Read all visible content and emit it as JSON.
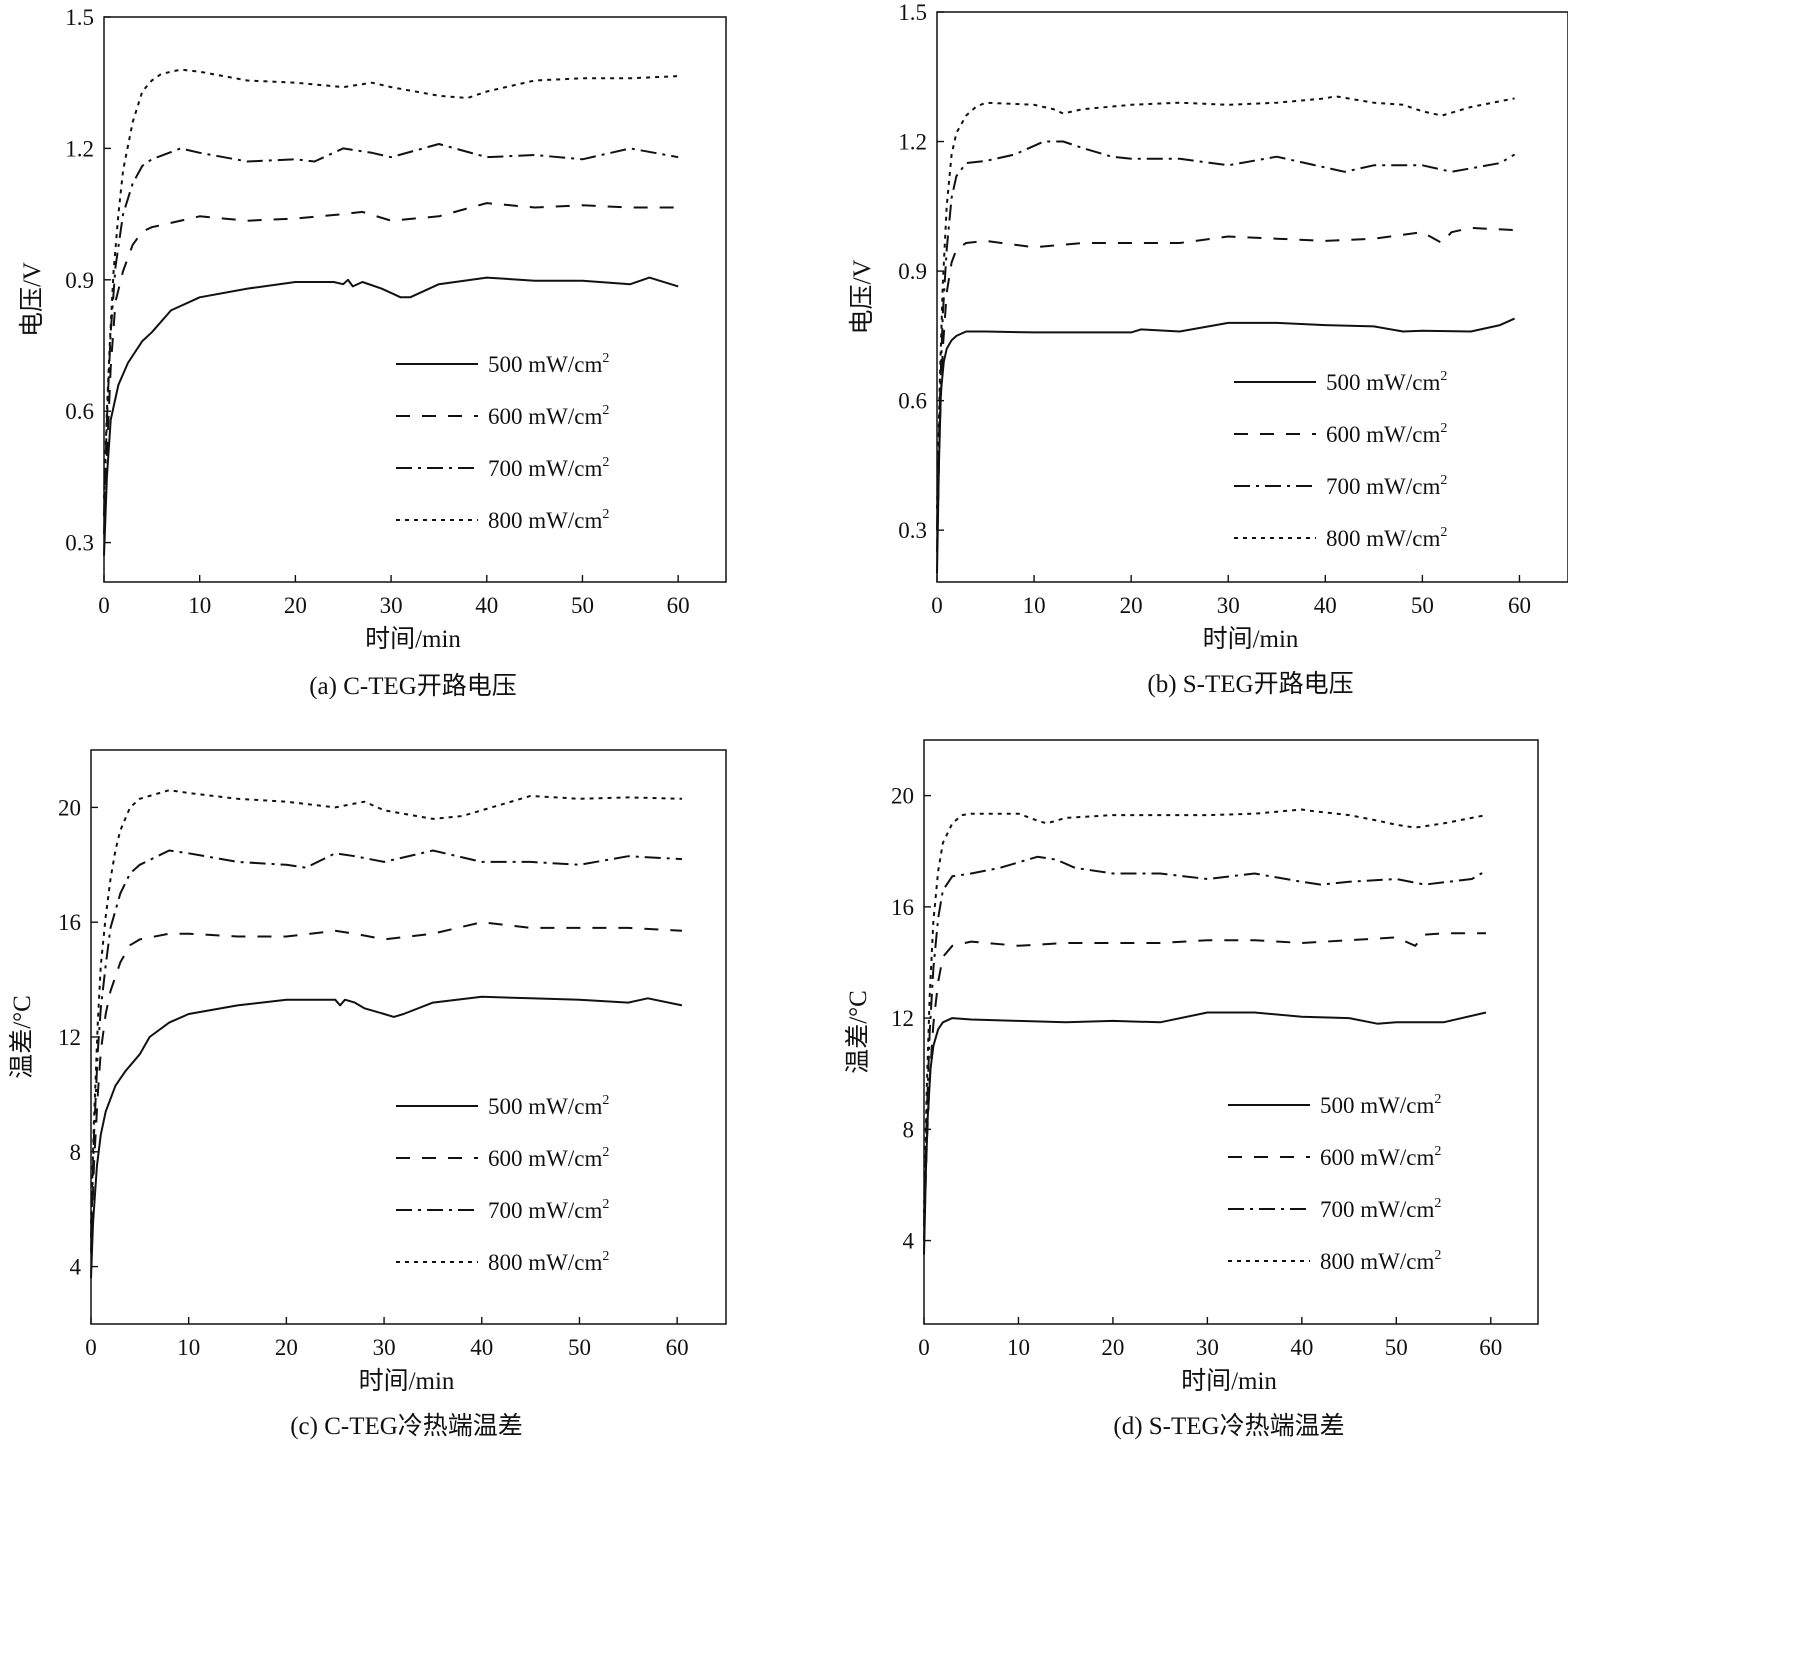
{
  "legend": [
    {
      "series_id": "s500",
      "value": "500 mW/cm",
      "sup": "2"
    },
    {
      "series_id": "s600",
      "value": "600 mW/cm",
      "sup": "2"
    },
    {
      "series_id": "s700",
      "value": "700 mW/cm",
      "sup": "2"
    },
    {
      "series_id": "s800",
      "value": "800 mW/cm",
      "sup": "2"
    }
  ],
  "chart_data": [
    {
      "id": "a",
      "type": "line",
      "caption": "(a) C-TEG开路电压",
      "xlabel": "时间/min",
      "ylabel": "电压/V",
      "xlim": [
        0,
        65
      ],
      "ylim": [
        0.21,
        1.5
      ],
      "xticks": [
        0,
        10,
        20,
        30,
        40,
        50,
        60
      ],
      "xtick_labels": [
        "0",
        "10",
        "20",
        "30",
        "40",
        "50",
        "60"
      ],
      "yticks": [
        0.3,
        0.6,
        0.9,
        1.2,
        1.5
      ],
      "ytick_labels": [
        "0.3",
        "0.6",
        "0.9",
        "1.2",
        "1.5"
      ],
      "grid": false,
      "legend_position": "lower-right",
      "series": [
        {
          "id": "s500",
          "name": "500 mW/cm2",
          "x": [
            0,
            0.3,
            0.7,
            1.5,
            2.5,
            4,
            5,
            7,
            10,
            15,
            20,
            24,
            25,
            25.5,
            26,
            27,
            29,
            30,
            31,
            32,
            35,
            40,
            45,
            50,
            55,
            57,
            60
          ],
          "y": [
            0.27,
            0.45,
            0.58,
            0.66,
            0.71,
            0.76,
            0.78,
            0.83,
            0.86,
            0.88,
            0.895,
            0.895,
            0.89,
            0.9,
            0.885,
            0.895,
            0.88,
            0.87,
            0.86,
            0.86,
            0.89,
            0.905,
            0.898,
            0.898,
            0.89,
            0.905,
            0.885
          ]
        },
        {
          "id": "s600",
          "name": "600 mW/cm2",
          "x": [
            0,
            0.3,
            0.7,
            1.2,
            2,
            3,
            4,
            5,
            7,
            10,
            15,
            20,
            25,
            27,
            30,
            35,
            40,
            45,
            50,
            55,
            60
          ],
          "y": [
            0.32,
            0.5,
            0.7,
            0.85,
            0.92,
            0.98,
            1.01,
            1.02,
            1.03,
            1.045,
            1.035,
            1.04,
            1.05,
            1.055,
            1.035,
            1.045,
            1.075,
            1.065,
            1.07,
            1.065,
            1.065
          ]
        },
        {
          "id": "s700",
          "name": "700 mW/cm2",
          "x": [
            0,
            0.3,
            0.7,
            1.2,
            2,
            3,
            4,
            5,
            8,
            10,
            15,
            20,
            22,
            25,
            28,
            30,
            35,
            40,
            45,
            50,
            55,
            60
          ],
          "y": [
            0.36,
            0.58,
            0.78,
            0.93,
            1.05,
            1.12,
            1.16,
            1.175,
            1.2,
            1.19,
            1.17,
            1.175,
            1.17,
            1.2,
            1.19,
            1.18,
            1.21,
            1.18,
            1.185,
            1.175,
            1.2,
            1.18
          ]
        },
        {
          "id": "s800",
          "name": "800 mW/cm2",
          "x": [
            0,
            0.3,
            0.6,
            1,
            1.5,
            2,
            3,
            4,
            5,
            6,
            8,
            10,
            15,
            20,
            25,
            28,
            30,
            35,
            38,
            40,
            45,
            50,
            55,
            60
          ],
          "y": [
            0.4,
            0.6,
            0.75,
            0.92,
            1.05,
            1.15,
            1.26,
            1.33,
            1.355,
            1.37,
            1.38,
            1.375,
            1.355,
            1.35,
            1.34,
            1.35,
            1.34,
            1.32,
            1.315,
            1.33,
            1.355,
            1.36,
            1.36,
            1.365
          ]
        }
      ]
    },
    {
      "id": "b",
      "type": "line",
      "caption": "(b) S-TEG开路电压",
      "xlabel": "时间/min",
      "ylabel": "电压/V",
      "xlim": [
        0,
        65
      ],
      "ylim": [
        0.18,
        1.5
      ],
      "xticks": [
        0,
        10,
        20,
        30,
        40,
        50,
        60
      ],
      "xtick_labels": [
        "0",
        "10",
        "20",
        "30",
        "40",
        "50",
        "60"
      ],
      "yticks": [
        0.3,
        0.6,
        0.9,
        1.2,
        1.5
      ],
      "ytick_labels": [
        "0.3",
        "0.6",
        "0.9",
        "1.2",
        "1.5"
      ],
      "grid": false,
      "legend_position": "lower-right",
      "series": [
        {
          "id": "s500",
          "name": "500 mW/cm2",
          "x": [
            0,
            0.2,
            0.4,
            0.7,
            1,
            1.5,
            2,
            3,
            5,
            10,
            15,
            20,
            21,
            25,
            30,
            35,
            40,
            45,
            48,
            50,
            55,
            58,
            59.5
          ],
          "y": [
            0.2,
            0.45,
            0.62,
            0.69,
            0.72,
            0.74,
            0.75,
            0.76,
            0.76,
            0.758,
            0.758,
            0.758,
            0.765,
            0.76,
            0.78,
            0.78,
            0.775,
            0.772,
            0.76,
            0.762,
            0.76,
            0.775,
            0.79
          ]
        },
        {
          "id": "s600",
          "name": "600 mW/cm2",
          "x": [
            0,
            0.3,
            0.6,
            1,
            1.5,
            2,
            3,
            5,
            10,
            15,
            20,
            25,
            30,
            35,
            40,
            45,
            50,
            52,
            53,
            55,
            59.5
          ],
          "y": [
            0.25,
            0.55,
            0.72,
            0.85,
            0.92,
            0.95,
            0.965,
            0.97,
            0.955,
            0.965,
            0.965,
            0.965,
            0.98,
            0.975,
            0.97,
            0.975,
            0.99,
            0.965,
            0.99,
            1.0,
            0.995
          ]
        },
        {
          "id": "s700",
          "name": "700 mW/cm2",
          "x": [
            0,
            0.3,
            0.6,
            1,
            1.5,
            2,
            3,
            5,
            8,
            11,
            13,
            15,
            18,
            20,
            25,
            30,
            35,
            40,
            42,
            45,
            50,
            53,
            58,
            59.5
          ],
          "y": [
            0.3,
            0.6,
            0.8,
            0.95,
            1.07,
            1.12,
            1.15,
            1.155,
            1.17,
            1.2,
            1.2,
            1.185,
            1.165,
            1.16,
            1.16,
            1.145,
            1.165,
            1.14,
            1.13,
            1.145,
            1.145,
            1.13,
            1.15,
            1.17
          ]
        },
        {
          "id": "s800",
          "name": "800 mW/cm2",
          "x": [
            0,
            0.3,
            0.6,
            1,
            1.5,
            2,
            3,
            4,
            5,
            10,
            12,
            13,
            15,
            20,
            25,
            30,
            35,
            40,
            41,
            45,
            48,
            50,
            52,
            55,
            59.5
          ],
          "y": [
            0.35,
            0.65,
            0.87,
            1.05,
            1.17,
            1.22,
            1.26,
            1.28,
            1.29,
            1.285,
            1.275,
            1.265,
            1.275,
            1.285,
            1.29,
            1.285,
            1.29,
            1.3,
            1.305,
            1.29,
            1.285,
            1.27,
            1.26,
            1.28,
            1.3
          ]
        }
      ]
    },
    {
      "id": "c",
      "type": "line",
      "caption": "(c) C-TEG冷热端温差",
      "xlabel": "时间/min",
      "ylabel": "温差/°C",
      "xlim": [
        0,
        65
      ],
      "ylim": [
        2,
        22
      ],
      "xticks": [
        0,
        10,
        20,
        30,
        40,
        50,
        60
      ],
      "xtick_labels": [
        "0",
        "10",
        "20",
        "30",
        "40",
        "50",
        "60"
      ],
      "yticks": [
        4,
        8,
        12,
        16,
        20
      ],
      "ytick_labels": [
        "4",
        "8",
        "12",
        "16",
        "20"
      ],
      "grid": false,
      "legend_position": "lower-right",
      "series": [
        {
          "id": "s500",
          "name": "500 mW/cm2",
          "x": [
            0,
            0.2,
            0.6,
            1,
            1.5,
            2.5,
            3.5,
            5,
            6,
            8,
            10,
            15,
            20,
            25,
            25.5,
            26,
            27,
            28,
            30,
            31,
            32,
            35,
            40,
            45,
            50,
            55,
            57,
            60.5
          ],
          "y": [
            3.6,
            5.5,
            7.5,
            8.6,
            9.4,
            10.3,
            10.8,
            11.4,
            12.0,
            12.5,
            12.8,
            13.1,
            13.3,
            13.3,
            13.1,
            13.3,
            13.2,
            13.0,
            12.8,
            12.7,
            12.8,
            13.2,
            13.4,
            13.35,
            13.3,
            13.2,
            13.35,
            13.1
          ]
        },
        {
          "id": "s600",
          "name": "600 mW/cm2",
          "x": [
            0,
            0.3,
            0.7,
            1,
            1.5,
            2,
            3,
            4,
            5,
            8,
            10,
            15,
            20,
            25,
            27,
            30,
            35,
            40,
            45,
            50,
            55,
            60.5
          ],
          "y": [
            4.5,
            7.5,
            10.0,
            11.5,
            12.8,
            13.6,
            14.6,
            15.2,
            15.4,
            15.6,
            15.6,
            15.5,
            15.5,
            15.7,
            15.6,
            15.4,
            15.6,
            16.0,
            15.8,
            15.8,
            15.8,
            15.7
          ]
        },
        {
          "id": "s700",
          "name": "700 mW/cm2",
          "x": [
            0,
            0.3,
            0.7,
            1,
            1.5,
            2,
            3,
            4,
            5,
            8,
            10,
            15,
            20,
            22,
            25,
            27,
            30,
            35,
            40,
            45,
            50,
            55,
            60.5
          ],
          "y": [
            5,
            8.5,
            11.5,
            13.0,
            14.5,
            15.8,
            17.0,
            17.7,
            18.0,
            18.5,
            18.4,
            18.1,
            18.0,
            17.9,
            18.4,
            18.3,
            18.1,
            18.5,
            18.1,
            18.1,
            18.0,
            18.3,
            18.2
          ]
        },
        {
          "id": "s800",
          "name": "800 mW/cm2",
          "x": [
            0,
            0.3,
            0.7,
            1,
            1.5,
            2,
            2.5,
            3,
            4,
            5,
            8,
            10,
            15,
            20,
            25,
            28,
            30,
            35,
            38,
            40,
            45,
            50,
            55,
            60.5
          ],
          "y": [
            5.5,
            9,
            12.5,
            14.5,
            16.2,
            17.5,
            18.5,
            19.2,
            20.0,
            20.3,
            20.6,
            20.5,
            20.3,
            20.2,
            20.0,
            20.2,
            19.9,
            19.6,
            19.7,
            19.9,
            20.4,
            20.3,
            20.35,
            20.3
          ]
        }
      ]
    },
    {
      "id": "d",
      "type": "line",
      "caption": "(d) S-TEG冷热端温差",
      "xlabel": "时间/min",
      "ylabel": "温差/°C",
      "xlim": [
        0,
        65
      ],
      "ylim": [
        1,
        22
      ],
      "xticks": [
        0,
        10,
        20,
        30,
        40,
        50,
        60
      ],
      "xtick_labels": [
        "0",
        "10",
        "20",
        "30",
        "40",
        "50",
        "60"
      ],
      "yticks": [
        4,
        8,
        12,
        16,
        20
      ],
      "ytick_labels": [
        "4",
        "8",
        "12",
        "16",
        "20"
      ],
      "grid": false,
      "legend_position": "lower-right",
      "series": [
        {
          "id": "s500",
          "name": "500 mW/cm2",
          "x": [
            0,
            0.2,
            0.4,
            0.7,
            1,
            1.5,
            2,
            3,
            5,
            10,
            15,
            20,
            25,
            30,
            35,
            40,
            45,
            48,
            50,
            55,
            59.5
          ],
          "y": [
            3.5,
            6.5,
            8.5,
            10.2,
            11.0,
            11.6,
            11.85,
            12.0,
            11.95,
            11.9,
            11.85,
            11.9,
            11.85,
            12.2,
            12.2,
            12.05,
            12.0,
            11.8,
            11.85,
            11.85,
            12.2
          ]
        },
        {
          "id": "s600",
          "name": "600 mW/cm2",
          "x": [
            0,
            0.3,
            0.6,
            1,
            1.5,
            2,
            3,
            5,
            10,
            15,
            20,
            25,
            30,
            35,
            40,
            45,
            50,
            52,
            53,
            55,
            59.5
          ],
          "y": [
            4,
            7.5,
            9.8,
            11.8,
            13.3,
            14.2,
            14.6,
            14.75,
            14.6,
            14.7,
            14.7,
            14.7,
            14.8,
            14.8,
            14.7,
            14.8,
            14.9,
            14.6,
            15.0,
            15.05,
            15.05
          ]
        },
        {
          "id": "s700",
          "name": "700 mW/cm2",
          "x": [
            0,
            0.3,
            0.6,
            1,
            1.5,
            2,
            3,
            5,
            8,
            12,
            14,
            16,
            20,
            25,
            30,
            35,
            40,
            42,
            45,
            50,
            53,
            58,
            59.5
          ],
          "y": [
            4.5,
            8.5,
            11.5,
            13.8,
            15.6,
            16.6,
            17.1,
            17.2,
            17.4,
            17.8,
            17.7,
            17.4,
            17.2,
            17.2,
            17.0,
            17.2,
            16.9,
            16.8,
            16.9,
            17.0,
            16.8,
            17.0,
            17.3
          ]
        },
        {
          "id": "s800",
          "name": "800 mW/cm2",
          "x": [
            0,
            0.3,
            0.6,
            1,
            1.5,
            2,
            3,
            4,
            5,
            10,
            12,
            13,
            15,
            20,
            25,
            30,
            35,
            40,
            41,
            45,
            48,
            50,
            52,
            55,
            59.5
          ],
          "y": [
            5,
            9.5,
            12.8,
            15.5,
            17.3,
            18.3,
            19.0,
            19.3,
            19.35,
            19.35,
            19.1,
            19.0,
            19.2,
            19.3,
            19.3,
            19.3,
            19.35,
            19.5,
            19.45,
            19.3,
            19.1,
            18.95,
            18.85,
            19.0,
            19.3
          ]
        }
      ]
    }
  ]
}
